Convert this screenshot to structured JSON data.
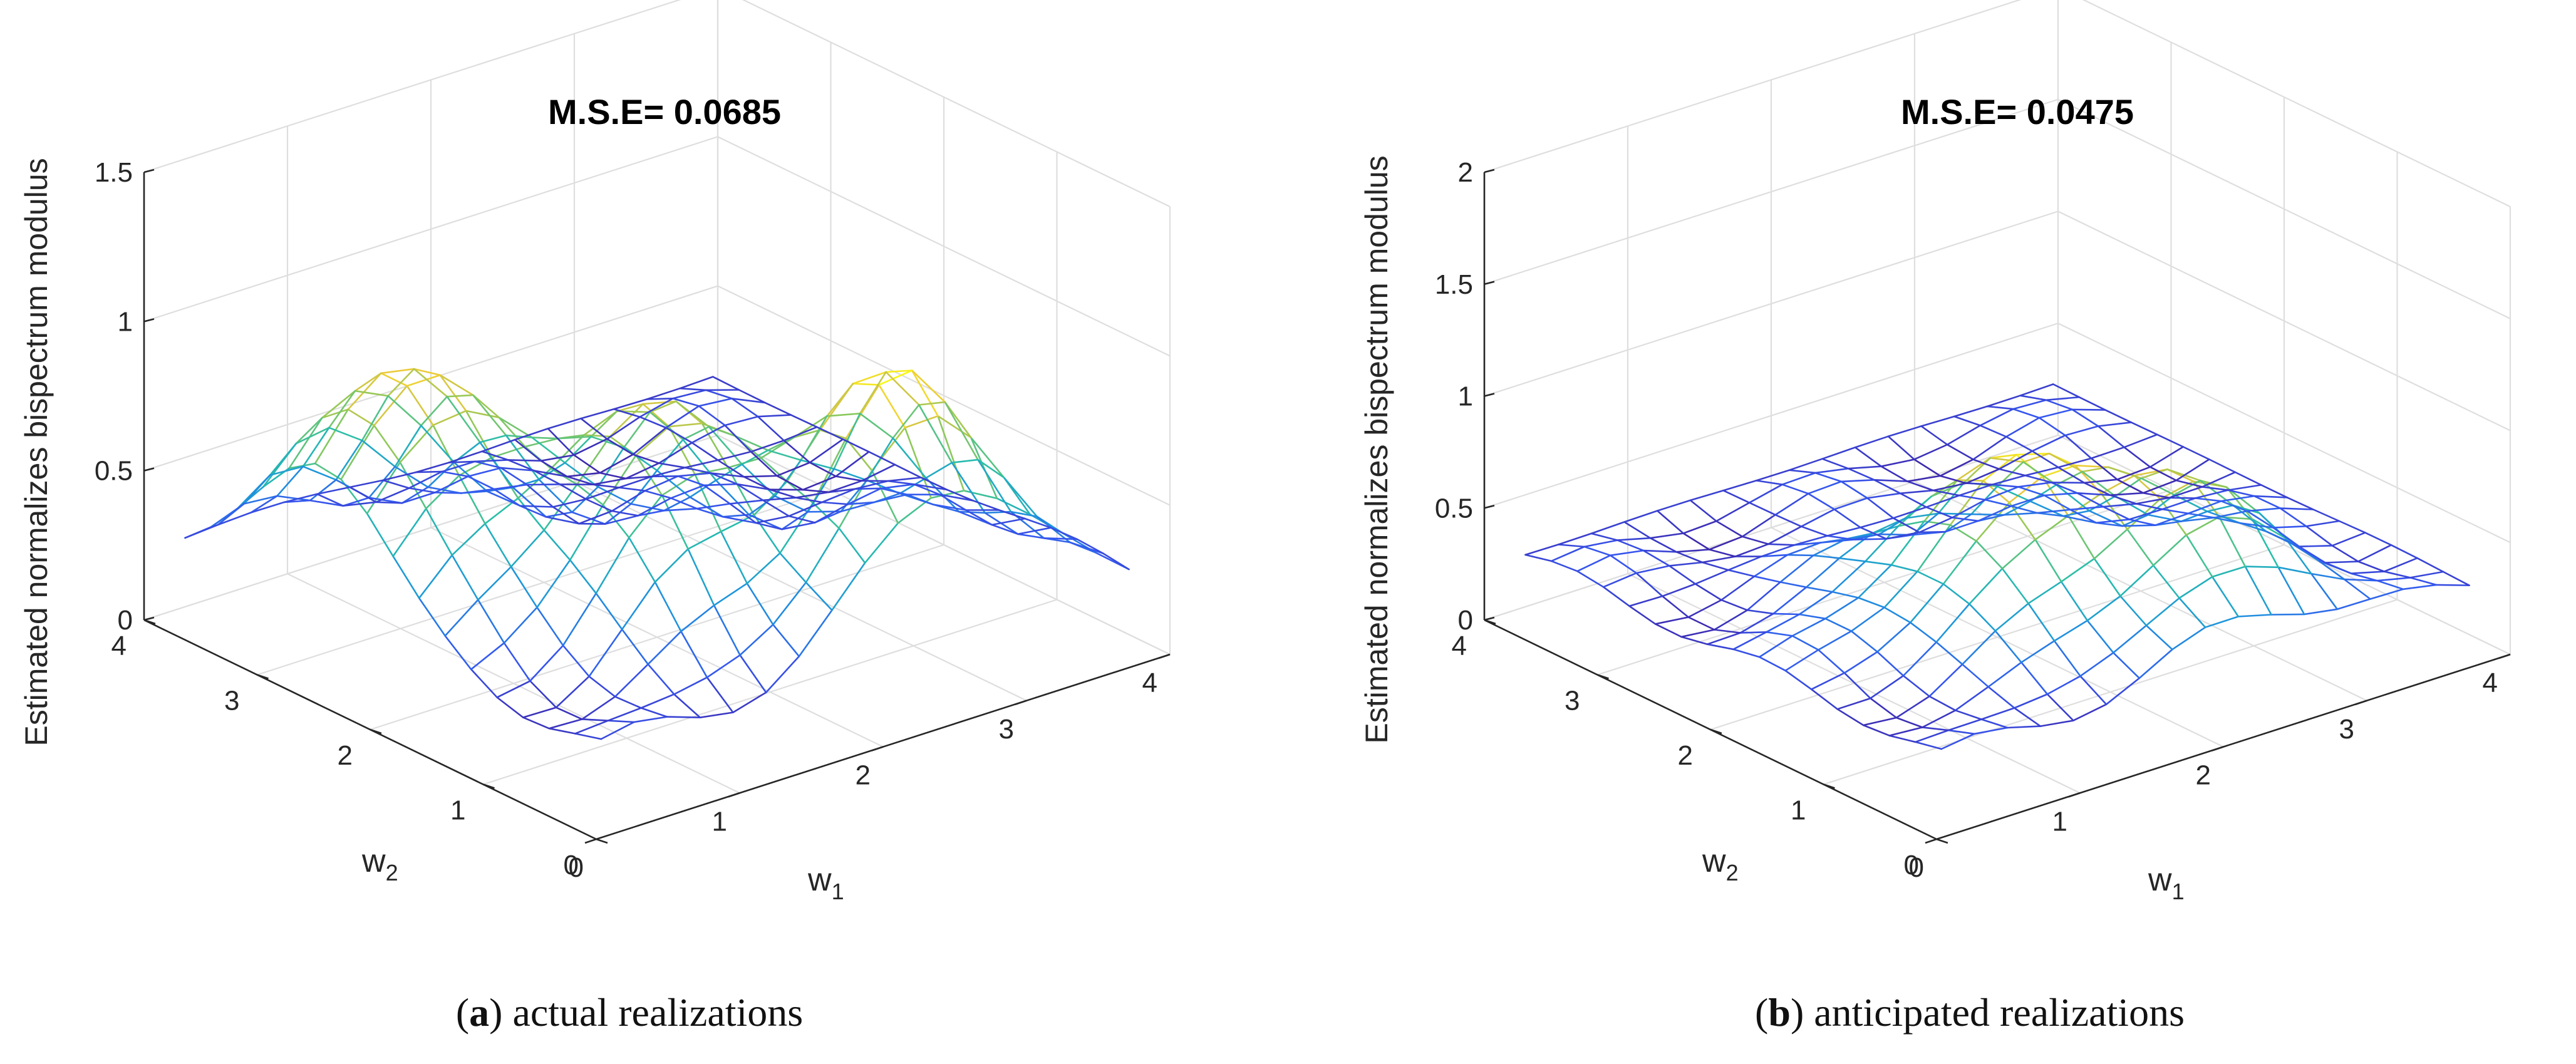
{
  "chart_data": [
    {
      "type": "surface",
      "panel_letter": "a",
      "caption": "actual realizations",
      "annotation": "M.S.E= 0.0685",
      "zlabel": "Estimated normalizes bispectrum modulus",
      "xlabel": "w",
      "xlabel_sub": "1",
      "ylabel": "w",
      "ylabel_sub": "2",
      "xlim": [
        0,
        4
      ],
      "ylim": [
        0,
        4
      ],
      "zlim": [
        0,
        1.5
      ],
      "x_ticks": [
        "0",
        "1",
        "2",
        "3",
        "4"
      ],
      "y_ticks": [
        "0",
        "1",
        "2",
        "3",
        "4"
      ],
      "z_ticks": [
        "0",
        "0.5",
        "1",
        "1.5"
      ],
      "grid_size": 17,
      "colormap": "parula",
      "surface_peaks": [
        {
          "w1": 0.6,
          "w2": 2.6,
          "height": 1.0
        },
        {
          "w1": 2.6,
          "w2": 0.6,
          "height": 1.0
        },
        {
          "w1": 1.5,
          "w2": 1.5,
          "height": 0.9
        }
      ],
      "surface_floor": 0.25,
      "surface_min": 0.1
    },
    {
      "type": "surface",
      "panel_letter": "b",
      "caption": "anticipated realizations",
      "annotation": "M.S.E= 0.0475",
      "zlabel": "Estimated normalizes bispectrum modulus",
      "xlabel": "w",
      "xlabel_sub": "1",
      "ylabel": "w",
      "ylabel_sub": "2",
      "xlim": [
        0,
        4
      ],
      "ylim": [
        0,
        4
      ],
      "zlim": [
        0,
        2
      ],
      "x_ticks": [
        "0",
        "1",
        "2",
        "3",
        "4"
      ],
      "y_ticks": [
        "0",
        "1",
        "2",
        "3",
        "4"
      ],
      "z_ticks": [
        "0",
        "0.5",
        "1",
        "1.5",
        "2"
      ],
      "grid_size": 17,
      "colormap": "parula",
      "surface_peaks": [
        {
          "w1": 1.6,
          "w2": 1.6,
          "height": 0.85
        },
        {
          "w1": 2.4,
          "w2": 0.9,
          "height": 0.8
        }
      ],
      "surface_floor": 0.3,
      "surface_min": 0.05
    }
  ]
}
